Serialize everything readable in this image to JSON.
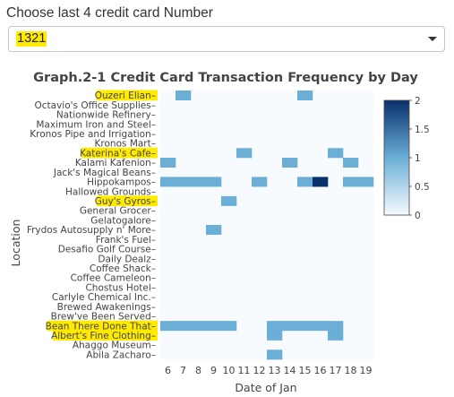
{
  "selector": {
    "label": "Choose last 4 credit card Number",
    "value": "1321"
  },
  "colors": {
    "highlight": "#ffea00",
    "scale": [
      "#f7fbff",
      "#6baed6",
      "#08306b"
    ]
  },
  "chart_data": {
    "type": "heatmap",
    "title": "Graph.2-1 Credit Card Transaction Frequency by Day",
    "xlabel": "Date of Jan",
    "ylabel": "Location",
    "x": [
      6,
      7,
      8,
      9,
      10,
      11,
      12,
      13,
      14,
      15,
      16,
      17,
      18,
      19
    ],
    "y": [
      "Ouzeri Elian",
      "Octavio's Office Supplies",
      "Nationwide Refinery",
      "Maximum Iron and Steel",
      "Kronos Pipe and Irrigation",
      "Kronos Mart",
      "Katerina's Cafe",
      "Kalami Kafenion",
      "Jack's Magical Beans",
      "Hippokampos",
      "Hallowed Grounds",
      "Guy's Gyros",
      "General Grocer",
      "Gelatogalore",
      "Frydos Autosupply n' More",
      "Frank's Fuel",
      "Desafio Golf Course",
      "Daily Dealz",
      "Coffee Shack",
      "Coffee Cameleon",
      "Chostus Hotel",
      "Carlyle Chemical Inc.",
      "Brewed Awakenings",
      "Brew've Been Served",
      "Bean There Done That",
      "Albert's Fine Clothing",
      "Ahaggo Museum",
      "Abila Zacharo"
    ],
    "highlighted_locations": [
      "Ouzeri Elian",
      "Katerina's Cafe",
      "Guy's Gyros",
      "Bean There Done That",
      "Albert's Fine Clothing"
    ],
    "cells": [
      [
        "Ouzeri Elian",
        7,
        1
      ],
      [
        "Ouzeri Elian",
        15,
        1
      ],
      [
        "Katerina's Cafe",
        11,
        1
      ],
      [
        "Katerina's Cafe",
        17,
        1
      ],
      [
        "Kalami Kafenion",
        6,
        1
      ],
      [
        "Kalami Kafenion",
        14,
        1
      ],
      [
        "Kalami Kafenion",
        18,
        1
      ],
      [
        "Hippokampos",
        6,
        1
      ],
      [
        "Hippokampos",
        7,
        1
      ],
      [
        "Hippokampos",
        8,
        1
      ],
      [
        "Hippokampos",
        9,
        1
      ],
      [
        "Hippokampos",
        12,
        1
      ],
      [
        "Hippokampos",
        15,
        1
      ],
      [
        "Hippokampos",
        16,
        2
      ],
      [
        "Hippokampos",
        18,
        1
      ],
      [
        "Hippokampos",
        19,
        1
      ],
      [
        "Guy's Gyros",
        10,
        1
      ],
      [
        "Frydos Autosupply n' More",
        9,
        1
      ],
      [
        "Bean There Done That",
        6,
        1
      ],
      [
        "Bean There Done That",
        7,
        1
      ],
      [
        "Bean There Done That",
        8,
        1
      ],
      [
        "Bean There Done That",
        9,
        1
      ],
      [
        "Bean There Done That",
        10,
        1
      ],
      [
        "Bean There Done That",
        13,
        1
      ],
      [
        "Bean There Done That",
        14,
        1
      ],
      [
        "Bean There Done That",
        15,
        1
      ],
      [
        "Bean There Done That",
        16,
        1
      ],
      [
        "Bean There Done That",
        17,
        1
      ],
      [
        "Albert's Fine Clothing",
        13,
        1
      ],
      [
        "Albert's Fine Clothing",
        17,
        1
      ],
      [
        "Abila Zacharo",
        13,
        1
      ]
    ],
    "zlim": [
      0,
      2
    ],
    "colorbar_ticks": [
      0,
      0.5,
      1,
      1.5,
      2
    ],
    "grid": false
  }
}
